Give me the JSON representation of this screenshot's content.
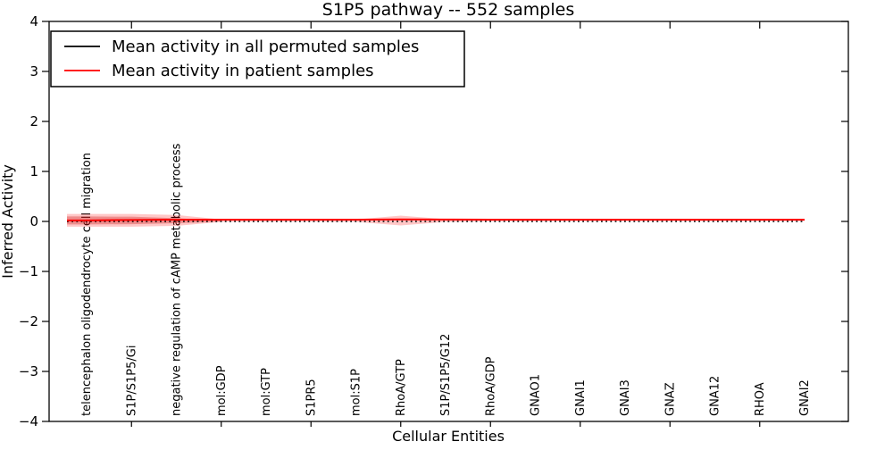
{
  "chart_data": {
    "type": "line",
    "title": "S1P5 pathway -- 552 samples",
    "xlabel": "Cellular Entities",
    "ylabel": "Inferred Activity",
    "sample_count": 552,
    "ylim": [
      -4,
      4
    ],
    "ytick_labels": [
      "4",
      "3",
      "2",
      "1",
      "0",
      "−1",
      "−2",
      "−3",
      "−4"
    ],
    "grid": false,
    "categories": [
      "telencephalon oligodendrocyte cell migration",
      "S1P/S1P5/Gi",
      "negative regulation of cAMP metabolic process",
      "mol:GDP",
      "mol:GTP",
      "S1PR5",
      "mol:S1P",
      "RhoA/GTP",
      "S1P/S1P5/G12",
      "RhoA/GDP",
      "GNAO1",
      "GNAI1",
      "GNAI3",
      "GNAZ",
      "GNA12",
      "RHOA",
      "GNAI2"
    ],
    "series": [
      {
        "name": "Mean activity in all permuted samples",
        "color": "#000000",
        "style": "dotted",
        "values": [
          0,
          0,
          0,
          0,
          0,
          0,
          0,
          0,
          0,
          0,
          0,
          0,
          0,
          0,
          0,
          0,
          0
        ]
      },
      {
        "name": "Mean activity in patient samples",
        "color": "#ff0000",
        "style": "solid",
        "values": [
          0.02,
          0.03,
          0.035,
          0.036,
          0.036,
          0.036,
          0.036,
          0.04,
          0.038,
          0.036,
          0.036,
          0.036,
          0.036,
          0.036,
          0.036,
          0.036,
          0.036
        ]
      }
    ],
    "band": {
      "name": "permutation-spread-band",
      "color": "rgba(255,0,0,0.22)",
      "upper": [
        0.15,
        0.15,
        0.13,
        0.04,
        0.04,
        0.04,
        0.04,
        0.115,
        0.045,
        0.04,
        0.04,
        0.04,
        0.04,
        0.04,
        0.04,
        0.04,
        0.04
      ],
      "lower": [
        -0.105,
        -0.105,
        -0.09,
        -0.01,
        -0.005,
        -0.005,
        -0.01,
        -0.08,
        -0.01,
        0,
        0,
        0.005,
        0.005,
        0.005,
        0.005,
        0.005,
        0.005
      ]
    },
    "inner_band": {
      "name": "dense-spread-band",
      "color": "rgba(205,35,35,0.35)",
      "start_index": 0,
      "upper": [
        0.1,
        0.095,
        0.065,
        0.015
      ],
      "lower": [
        -0.06,
        -0.055,
        -0.035,
        0.0
      ]
    },
    "legend": {
      "position": "upper left",
      "entries": [
        {
          "label": "Mean activity in all permuted samples",
          "color": "#000000"
        },
        {
          "label": "Mean activity in patient samples",
          "color": "#ff0000"
        }
      ]
    }
  }
}
